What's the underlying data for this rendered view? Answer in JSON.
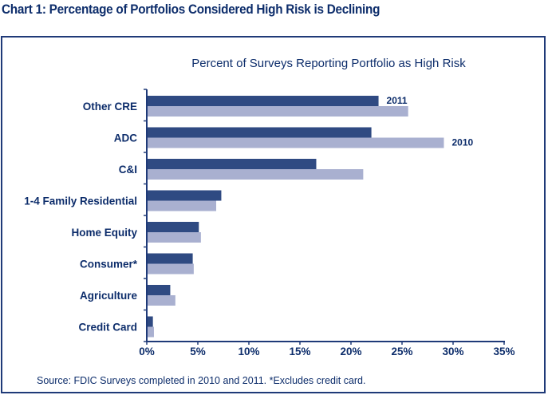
{
  "title": "Chart 1:  Percentage of Portfolios Considered High Risk is Declining",
  "source": "Source:  FDIC Surveys completed in 2010 and 2011.  *Excludes credit card.",
  "colors": {
    "series_2011": "#2f4a82",
    "series_2010": "#a9b0d0",
    "text": "#0d2d6b",
    "axis": "#1f3a78"
  },
  "chart_data": {
    "type": "bar",
    "orientation": "horizontal",
    "title": "Percent of Surveys Reporting Portfolio as High Risk",
    "xlabel": "",
    "ylabel": "",
    "xlim": [
      0,
      35
    ],
    "x_ticks": [
      0,
      5,
      10,
      15,
      20,
      25,
      30,
      35
    ],
    "x_tick_labels": [
      "0%",
      "5%",
      "10%",
      "15%",
      "20%",
      "25%",
      "30%",
      "35%"
    ],
    "grid": false,
    "legend": "inline-labels",
    "categories": [
      "Other CRE",
      "ADC",
      "C&I",
      "1-4 Family Residential",
      "Home Equity",
      "Consumer*",
      "Agriculture",
      "Credit Card"
    ],
    "series": [
      {
        "name": "2011",
        "values": [
          22.7,
          22.0,
          16.6,
          7.3,
          5.1,
          4.5,
          2.3,
          0.6
        ]
      },
      {
        "name": "2010",
        "values": [
          25.6,
          29.1,
          21.2,
          6.8,
          5.3,
          4.6,
          2.8,
          0.7
        ]
      }
    ],
    "annotations": [
      {
        "text": "2011",
        "series": "2011",
        "category": "Other CRE"
      },
      {
        "text": "2010",
        "series": "2010",
        "category": "ADC"
      }
    ]
  }
}
